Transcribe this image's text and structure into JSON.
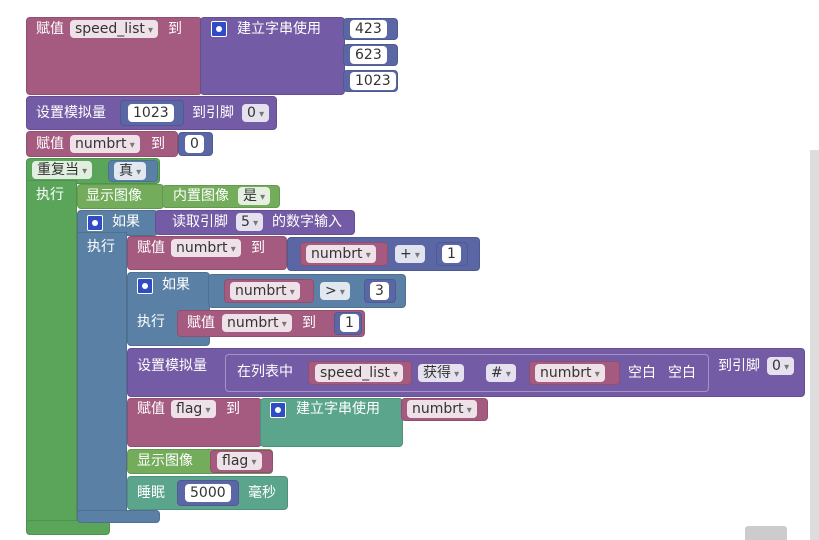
{
  "assign_list": {
    "label": "赋值",
    "var": "speed_list",
    "to": "到",
    "create": "建立字串使用",
    "items": [
      "423",
      "623",
      "1023"
    ]
  },
  "set_analog_1": {
    "label": "设置模拟量",
    "value": "1023",
    "to_pin": "到引脚",
    "pin": "0"
  },
  "assign_numbrt": {
    "label": "赋值",
    "var": "numbrt",
    "to": "到",
    "value": "0"
  },
  "loop": {
    "label": "重复当",
    "cond": "真",
    "do": "执行"
  },
  "show_builtin": {
    "label": "显示图像",
    "image_label": "内置图像",
    "image": "是"
  },
  "if_read": {
    "label": "如果",
    "read": "读取引脚",
    "pin": "5",
    "suffix": "的数字输入",
    "do": "执行"
  },
  "increment": {
    "label": "赋值",
    "var": "numbrt",
    "to": "到",
    "lhs": "numbrt",
    "op": "+",
    "rhs": "1"
  },
  "if_gt": {
    "label": "如果",
    "lhs": "numbrt",
    "op": ">",
    "rhs": "3",
    "do": "执行",
    "assign_label": "赋值",
    "assign_var": "numbrt",
    "assign_to": "到",
    "assign_value": "1"
  },
  "set_analog_2": {
    "label": "设置模拟量",
    "list_label": "在列表中",
    "list": "speed_list",
    "get": "获得",
    "mode": "#",
    "index": "numbrt",
    "empty1": "空白",
    "empty2": "空白",
    "to_pin": "到引脚",
    "pin": "0"
  },
  "assign_flag": {
    "label": "赋值",
    "var": "flag",
    "to": "到",
    "create": "建立字串使用",
    "item": "numbrt"
  },
  "show_flag": {
    "label": "显示图像",
    "var": "flag"
  },
  "sleep": {
    "label": "睡眠",
    "value": "5000",
    "unit": "毫秒"
  }
}
